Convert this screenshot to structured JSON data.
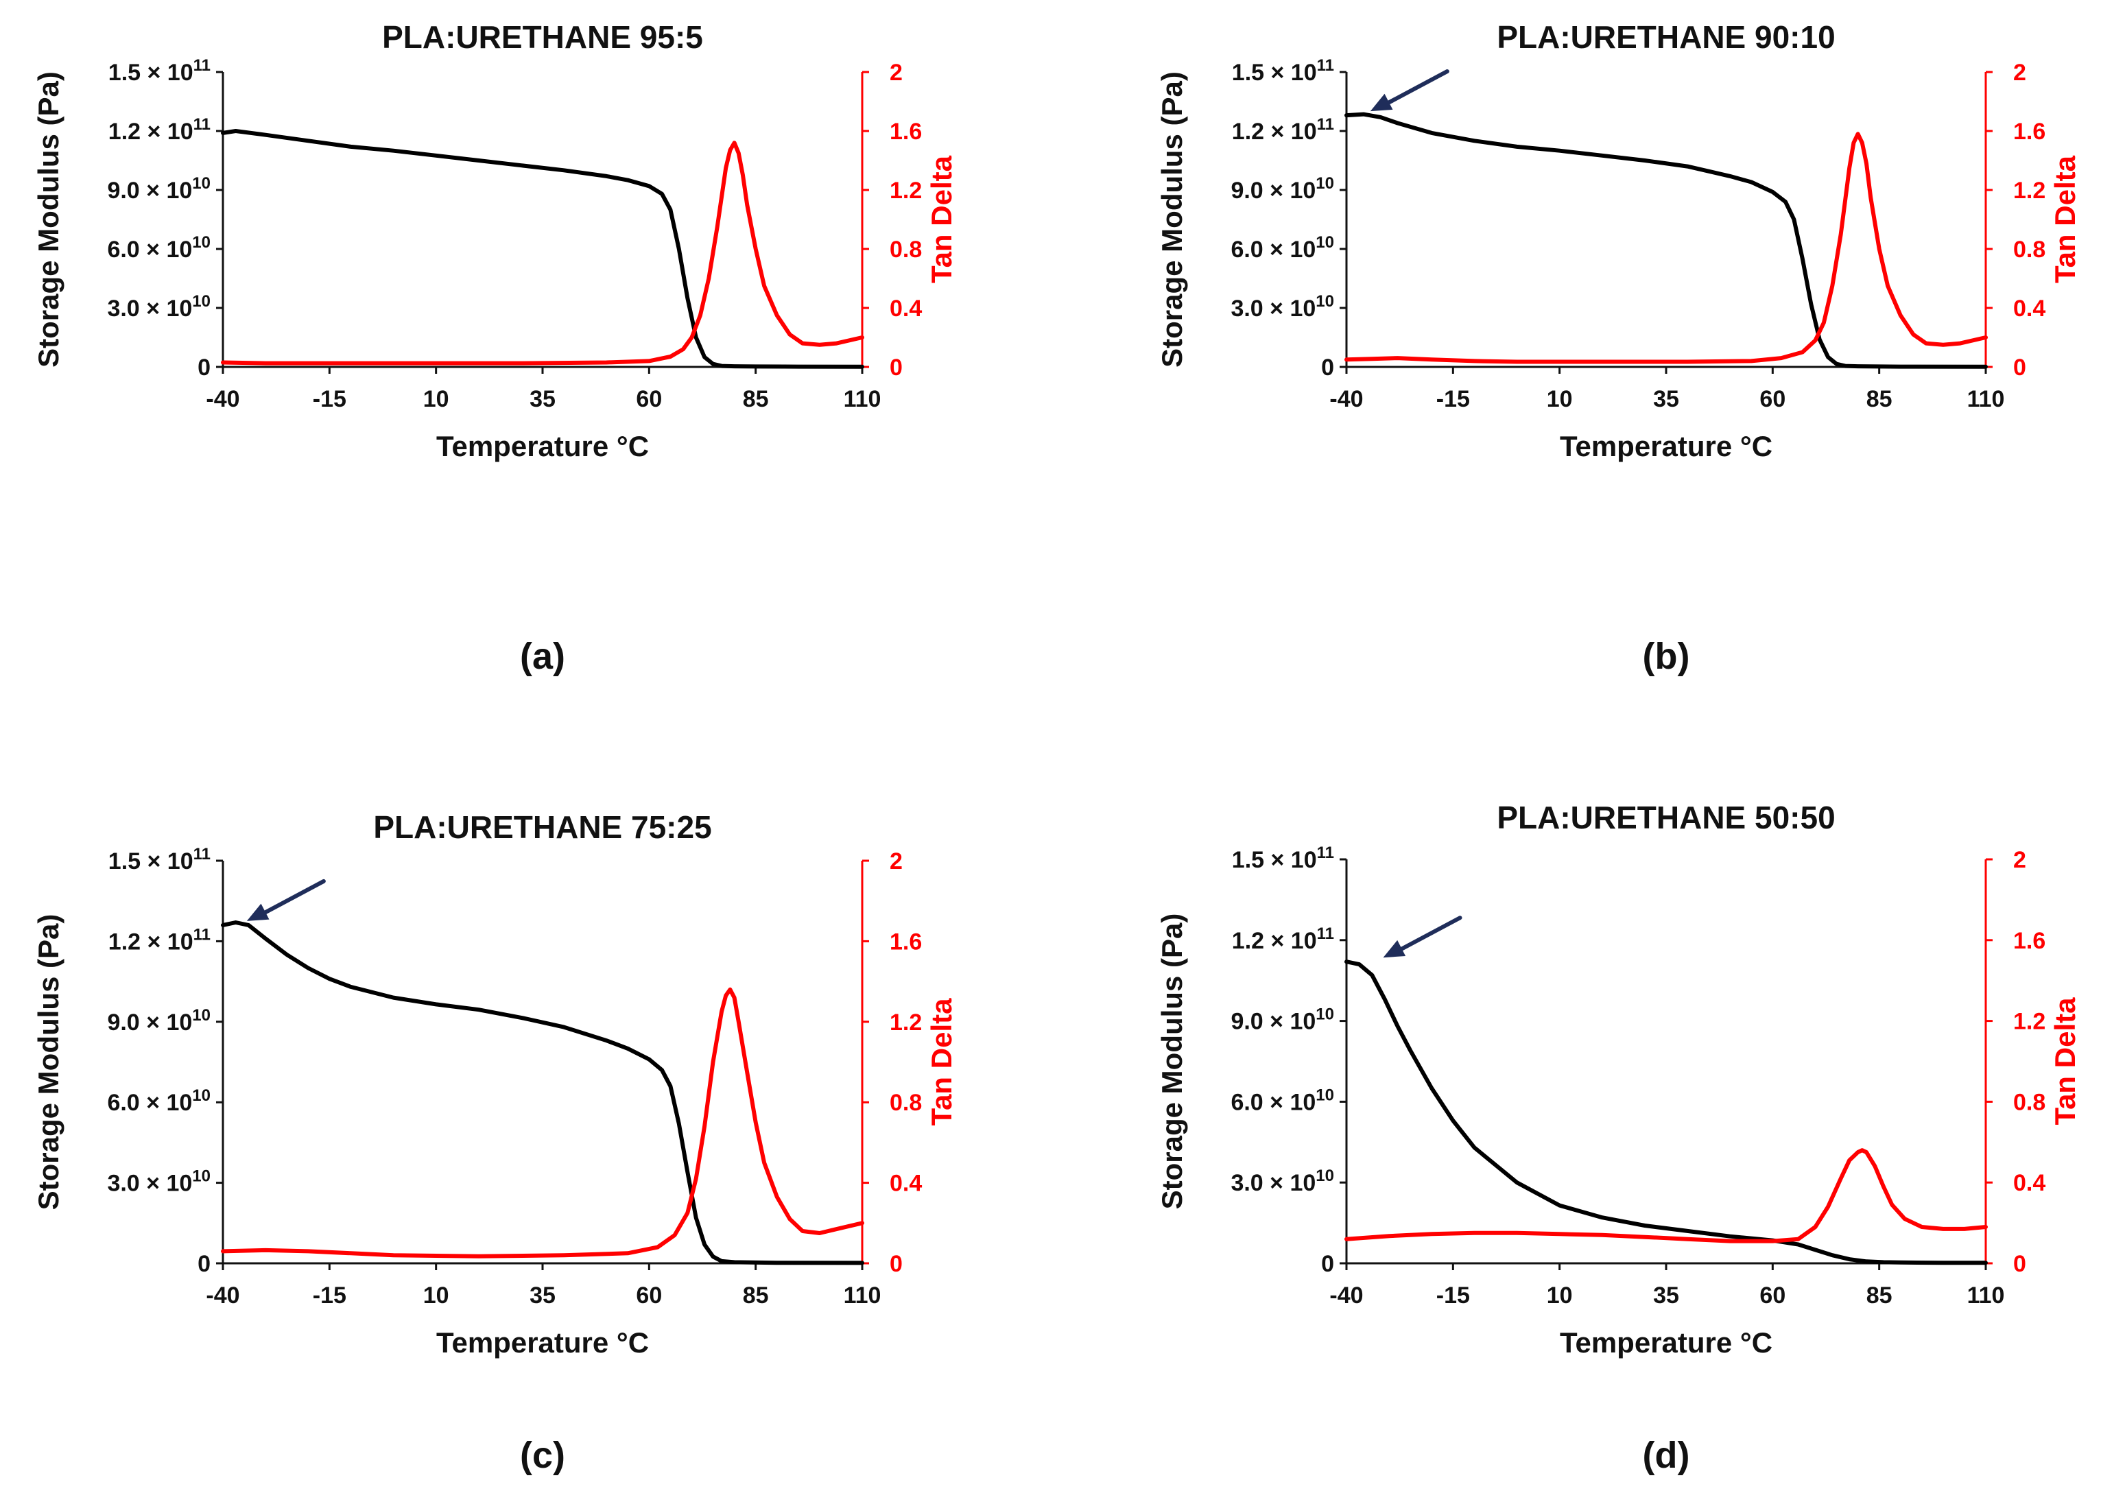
{
  "colors": {
    "storage_modulus": "#000000",
    "tan_delta": "#ff0000",
    "arrow": "#1f2d5a",
    "axis": "#111111"
  },
  "shared": {
    "xlabel": "Temperature °C",
    "ylabel_left": "Storage Modulus (Pa)",
    "ylabel_right": "Tan Delta",
    "x_ticks": [
      "-40",
      "-15",
      "10",
      "35",
      "60",
      "85",
      "110"
    ],
    "y_left_ticks": [
      {
        "mant": "0",
        "exp": ""
      },
      {
        "mant": "3.0 × 10",
        "exp": "10"
      },
      {
        "mant": "6.0 × 10",
        "exp": "10"
      },
      {
        "mant": "9.0 × 10",
        "exp": "10"
      },
      {
        "mant": "1.2 × 10",
        "exp": "11"
      },
      {
        "mant": "1.5 × 10",
        "exp": "11"
      }
    ],
    "y_right_ticks": [
      "0",
      "0.4",
      "0.8",
      "1.2",
      "1.6",
      "2"
    ]
  },
  "chart_data": [
    {
      "type": "line",
      "panel_label": "(a)",
      "title": "PLA:URETHANE 95:5",
      "xlim": [
        -40,
        110
      ],
      "ylim_left": [
        0,
        150000000000
      ],
      "ylim_right": [
        0,
        2
      ],
      "arrow_at": null,
      "series": [
        {
          "name": "Storage Modulus",
          "axis": "left",
          "x": [
            -40,
            -37,
            -30,
            -20,
            -10,
            0,
            10,
            20,
            30,
            40,
            50,
            55,
            60,
            63,
            65,
            67,
            69,
            71,
            73,
            75,
            77,
            80,
            85,
            95,
            110
          ],
          "y": [
            119000000000,
            120000000000,
            118000000000,
            115000000000,
            112000000000,
            110000000000,
            107500000000,
            105000000000,
            102500000000,
            100000000000,
            97000000000,
            95000000000,
            92000000000,
            88000000000,
            80000000000,
            60000000000,
            35000000000,
            15000000000,
            5000000000,
            1500000000,
            500000000,
            300000000,
            200000000,
            150000000,
            100000000
          ]
        },
        {
          "name": "Tan Delta",
          "axis": "right",
          "x": [
            -40,
            -30,
            -10,
            10,
            30,
            50,
            60,
            65,
            68,
            70,
            72,
            74,
            76,
            78,
            79,
            80,
            81,
            82,
            83,
            85,
            87,
            90,
            93,
            96,
            100,
            104,
            110
          ],
          "y": [
            0.03,
            0.025,
            0.025,
            0.025,
            0.025,
            0.03,
            0.04,
            0.07,
            0.12,
            0.2,
            0.35,
            0.6,
            0.95,
            1.35,
            1.47,
            1.52,
            1.45,
            1.3,
            1.1,
            0.8,
            0.55,
            0.35,
            0.22,
            0.16,
            0.15,
            0.16,
            0.2
          ]
        }
      ]
    },
    {
      "type": "line",
      "panel_label": "(b)",
      "title": "PLA:URETHANE 90:10",
      "xlim": [
        -40,
        110
      ],
      "ylim_left": [
        0,
        150000000000
      ],
      "ylim_right": [
        0,
        2
      ],
      "arrow_at": [
        -36,
        128000000000
      ],
      "series": [
        {
          "name": "Storage Modulus",
          "axis": "left",
          "x": [
            -40,
            -36,
            -32,
            -28,
            -20,
            -10,
            0,
            10,
            20,
            30,
            40,
            50,
            55,
            60,
            63,
            65,
            67,
            69,
            71,
            73,
            75,
            77,
            80,
            90,
            110
          ],
          "y": [
            128000000000,
            128500000000,
            127000000000,
            124000000000,
            119000000000,
            115000000000,
            112000000000,
            110000000000,
            107500000000,
            105000000000,
            102000000000,
            97000000000,
            94000000000,
            89000000000,
            84000000000,
            75000000000,
            55000000000,
            32000000000,
            14000000000,
            5000000000,
            1500000000,
            500000000,
            300000000,
            150000000,
            100000000
          ]
        },
        {
          "name": "Tan Delta",
          "axis": "right",
          "x": [
            -40,
            -34,
            -28,
            -20,
            -10,
            0,
            20,
            40,
            55,
            62,
            67,
            70,
            72,
            74,
            76,
            78,
            79,
            80,
            81,
            82,
            83,
            85,
            87,
            90,
            93,
            96,
            100,
            104,
            110
          ],
          "y": [
            0.05,
            0.055,
            0.06,
            0.05,
            0.04,
            0.035,
            0.035,
            0.035,
            0.04,
            0.06,
            0.1,
            0.18,
            0.3,
            0.55,
            0.9,
            1.35,
            1.52,
            1.58,
            1.52,
            1.38,
            1.15,
            0.8,
            0.55,
            0.35,
            0.22,
            0.16,
            0.15,
            0.16,
            0.2
          ]
        }
      ]
    },
    {
      "type": "line",
      "panel_label": "(c)",
      "title": "PLA:URETHANE 75:25",
      "xlim": [
        -40,
        110
      ],
      "ylim_left": [
        0,
        150000000000
      ],
      "ylim_right": [
        0,
        2
      ],
      "arrow_at": [
        -36,
        126000000000
      ],
      "series": [
        {
          "name": "Storage Modulus",
          "axis": "left",
          "x": [
            -40,
            -37,
            -34,
            -30,
            -25,
            -20,
            -15,
            -10,
            0,
            10,
            20,
            30,
            40,
            50,
            55,
            60,
            63,
            65,
            67,
            69,
            71,
            73,
            75,
            77,
            80,
            90,
            110
          ],
          "y": [
            126000000000,
            127000000000,
            126000000000,
            121000000000,
            115000000000,
            110000000000,
            106000000000,
            103000000000,
            99000000000,
            96500000000,
            94500000000,
            91500000000,
            88000000000,
            83000000000,
            80000000000,
            76000000000,
            72000000000,
            66000000000,
            52000000000,
            34000000000,
            17000000000,
            7000000000,
            2500000000,
            800000000,
            400000000,
            200000000,
            150000000
          ]
        },
        {
          "name": "Tan Delta",
          "axis": "right",
          "x": [
            -40,
            -30,
            -20,
            -10,
            0,
            20,
            40,
            55,
            62,
            66,
            69,
            71,
            73,
            75,
            77,
            78,
            79,
            80,
            81,
            83,
            85,
            87,
            90,
            93,
            96,
            100,
            104,
            110
          ],
          "y": [
            0.06,
            0.065,
            0.06,
            0.05,
            0.04,
            0.035,
            0.04,
            0.05,
            0.08,
            0.14,
            0.25,
            0.42,
            0.68,
            1.0,
            1.25,
            1.33,
            1.36,
            1.32,
            1.2,
            0.95,
            0.7,
            0.5,
            0.33,
            0.22,
            0.16,
            0.15,
            0.17,
            0.2
          ]
        }
      ]
    },
    {
      "type": "line",
      "panel_label": "(d)",
      "title": "PLA:URETHANE 50:50",
      "xlim": [
        -40,
        110
      ],
      "ylim_left": [
        0,
        150000000000
      ],
      "ylim_right": [
        0,
        2
      ],
      "arrow_at": [
        -33,
        112000000000
      ],
      "series": [
        {
          "name": "Storage Modulus",
          "axis": "left",
          "x": [
            -40,
            -37,
            -34,
            -31,
            -28,
            -25,
            -20,
            -15,
            -10,
            0,
            10,
            20,
            30,
            40,
            50,
            60,
            66,
            70,
            74,
            78,
            82,
            86,
            90,
            100,
            110
          ],
          "y": [
            112000000000,
            111000000000,
            107000000000,
            98000000000,
            88000000000,
            79000000000,
            65000000000,
            53000000000,
            43000000000,
            30000000000,
            21500000000,
            17000000000,
            14000000000,
            12000000000,
            10000000000,
            8500000000,
            7000000000,
            5000000000,
            3000000000,
            1500000000,
            700000000,
            400000000,
            300000000,
            200000000,
            200000000
          ]
        },
        {
          "name": "Tan Delta",
          "axis": "right",
          "x": [
            -40,
            -30,
            -20,
            -10,
            0,
            10,
            20,
            30,
            40,
            50,
            60,
            66,
            70,
            73,
            76,
            78,
            80,
            81,
            82,
            84,
            86,
            88,
            91,
            95,
            100,
            105,
            110
          ],
          "y": [
            0.12,
            0.135,
            0.145,
            0.15,
            0.15,
            0.145,
            0.14,
            0.13,
            0.12,
            0.11,
            0.11,
            0.12,
            0.18,
            0.28,
            0.42,
            0.51,
            0.55,
            0.56,
            0.55,
            0.48,
            0.38,
            0.29,
            0.22,
            0.18,
            0.17,
            0.17,
            0.18
          ]
        }
      ]
    }
  ]
}
